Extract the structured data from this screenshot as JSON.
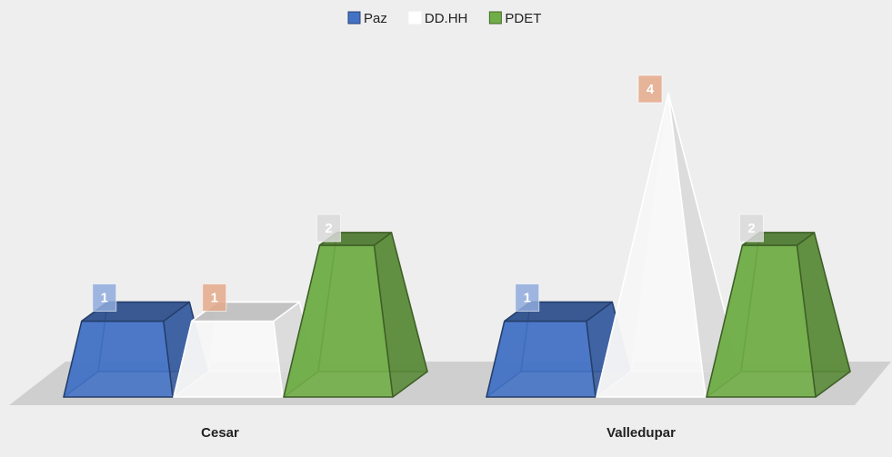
{
  "chart_data": {
    "type": "bar3d",
    "categories": [
      "Cesar",
      "Valledupar"
    ],
    "series": [
      {
        "name": "Paz",
        "color": "#4472c4",
        "label_color": "#8faadc",
        "values": [
          1,
          1
        ]
      },
      {
        "name": "DD.HH",
        "color": "#ffffff",
        "label_color": "#e3a98a",
        "values": [
          1,
          4
        ]
      },
      {
        "name": "PDET",
        "color": "#70ad47",
        "label_color": "#d9d9d9",
        "values": [
          2,
          2
        ]
      }
    ],
    "legend": "top"
  }
}
